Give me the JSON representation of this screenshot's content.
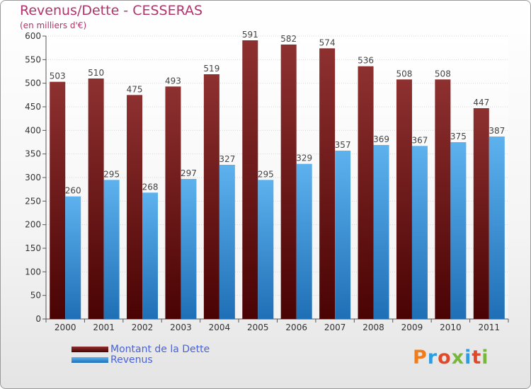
{
  "title": "Revenus/Dette - CESSERAS",
  "subtitle": "(en milliers d'€)",
  "brand": {
    "text": "Proxiti",
    "colors": [
      "#f07d1a",
      "#2f9be0",
      "#e04a2a",
      "#77b83a",
      "#2f9be0",
      "#e04a2a",
      "#77b83a"
    ]
  },
  "chart_data": {
    "type": "bar",
    "categories": [
      "2000",
      "2001",
      "2002",
      "2003",
      "2004",
      "2005",
      "2006",
      "2007",
      "2008",
      "2009",
      "2010",
      "2011"
    ],
    "series": [
      {
        "name": "Montant de la Dette",
        "values": [
          503,
          510,
          475,
          493,
          519,
          591,
          582,
          574,
          536,
          508,
          508,
          447
        ],
        "color": "#7a1c1c"
      },
      {
        "name": "Revenus",
        "values": [
          260,
          295,
          268,
          297,
          327,
          295,
          329,
          357,
          369,
          367,
          375,
          387
        ],
        "color": "#3f9be0"
      }
    ],
    "ylim": [
      0,
      600
    ],
    "yticks": [
      0,
      50,
      100,
      150,
      200,
      250,
      300,
      350,
      400,
      450,
      500,
      550,
      600
    ],
    "grid": true,
    "legend": "bottom-left"
  }
}
